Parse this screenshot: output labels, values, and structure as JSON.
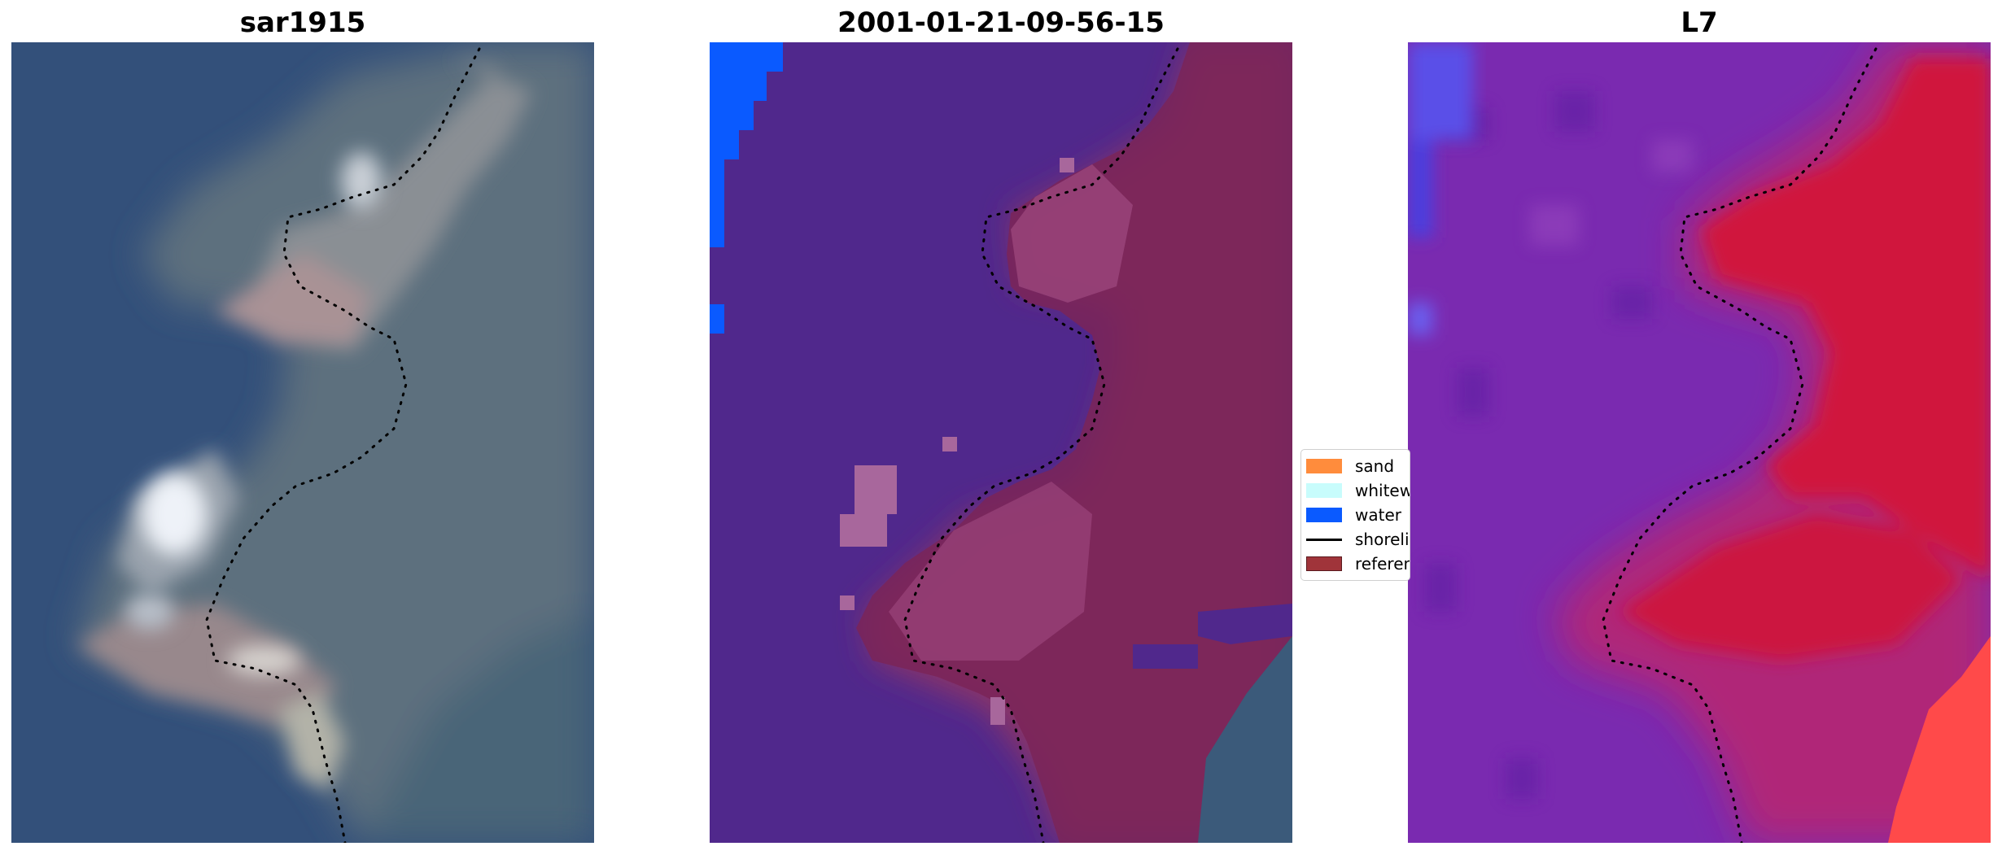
{
  "panels": [
    {
      "title": "sar1915"
    },
    {
      "title": "2001-01-21-09-56-15"
    },
    {
      "title": "L7"
    }
  ],
  "legend": {
    "items": [
      {
        "label": "sand",
        "color": "#ff8c3c",
        "kind": "patch"
      },
      {
        "label": "whitewater",
        "color": "#c8fcfc",
        "kind": "patch"
      },
      {
        "label": "water",
        "color": "#0a5aff",
        "kind": "patch"
      },
      {
        "label": "shoreline",
        "color": "#000000",
        "kind": "line"
      },
      {
        "label": "reference shoreline",
        "color": "#a0343a",
        "kind": "patch"
      }
    ]
  },
  "colors": {
    "ocean": "#33507a",
    "classified_water_overlay": "#50288c",
    "classified_land_overlay": "#7a2458",
    "water_class": "#0a5aff",
    "index_low": "#6a2ab0",
    "index_high": "#d4123a",
    "shoreline_dots": "#000000"
  }
}
